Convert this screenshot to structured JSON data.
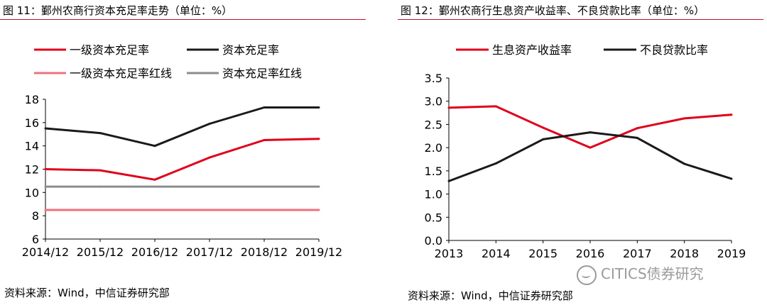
{
  "charts": [
    {
      "fig_title": "图 11：鄞州农商行资本充足率走势（单位：%）",
      "source": "资料来源：Wind，中信证券研究部"
    },
    {
      "fig_title": "图 12：鄞州农商行生息资产收益率、不良贷款比率（单位：%）",
      "source": "资料来源：Wind，中信证券研究部"
    }
  ],
  "watermark": "CITICS债券研究",
  "chart_data": [
    {
      "type": "line",
      "title": "鄞州农商行资本充足率走势（单位：%）",
      "categories": [
        "2014/12",
        "2015/12",
        "2016/12",
        "2017/12",
        "2018/12",
        "2019/12"
      ],
      "ylim": [
        6,
        18
      ],
      "yticks": [
        6,
        8,
        10,
        12,
        14,
        16,
        18
      ],
      "legend_position": "top",
      "series": [
        {
          "name": "一级资本充足率",
          "color": "#e0001b",
          "values": [
            12.0,
            11.9,
            11.1,
            13.0,
            14.5,
            14.6
          ]
        },
        {
          "name": "资本充足率",
          "color": "#1a1a1a",
          "values": [
            15.5,
            15.1,
            14.0,
            15.9,
            17.3,
            17.3
          ]
        },
        {
          "name": "一级资本充足率红线",
          "color": "#f07080",
          "values": [
            8.5,
            8.5,
            8.5,
            8.5,
            8.5,
            8.5
          ]
        },
        {
          "name": "资本充足率红线",
          "color": "#8c8c8c",
          "values": [
            10.5,
            10.5,
            10.5,
            10.5,
            10.5,
            10.5
          ]
        }
      ]
    },
    {
      "type": "line",
      "title": "鄞州农商行生息资产收益率、不良贷款比率（单位：%）",
      "categories": [
        "2013",
        "2014",
        "2015",
        "2016",
        "2017",
        "2018",
        "2019"
      ],
      "ylim": [
        0.0,
        3.5
      ],
      "yticks": [
        "0.0",
        "0.5",
        "1.0",
        "1.5",
        "2.0",
        "2.5",
        "3.0",
        "3.5"
      ],
      "legend_position": "top",
      "series": [
        {
          "name": "生息资产收益率",
          "color": "#e0001b",
          "values": [
            2.86,
            2.89,
            2.43,
            2.0,
            2.42,
            2.63,
            2.71
          ]
        },
        {
          "name": "不良贷款比率",
          "color": "#1a1a1a",
          "values": [
            1.28,
            1.66,
            2.18,
            2.33,
            2.21,
            1.65,
            1.33
          ]
        }
      ]
    }
  ]
}
